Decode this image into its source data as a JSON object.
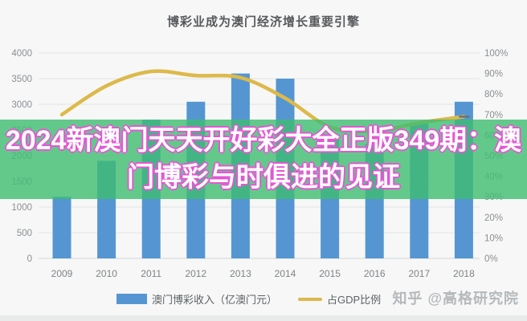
{
  "title": "博彩业成为澳门经济增长重要引擎",
  "overlay": {
    "headline": "2024新澳门天天开好彩大全正版349期：澳门博彩与时俱进的见证",
    "lines": [
      "2024新澳门天天开好彩大全正版349期：澳",
      "门博彩与时俱进的见证"
    ],
    "band_color": "#3ebd70",
    "band_opacity": "0.80",
    "text_color": "#ffffff",
    "outline_color": "#e655d6"
  },
  "watermark": "知乎 @高格研究院",
  "colors": {
    "background": "#f6f7f6",
    "bar": "#5596d2",
    "line": "#ddb94b",
    "grid": "#e3e4e6",
    "axis_line": "#d4d6d8",
    "axis_text": "#8b8f94",
    "x_text": "#7f8488",
    "end_marker": "#6b6f73"
  },
  "chart_data": {
    "type": "bar",
    "subtype": "combo-bar-line-dual-axis",
    "title": "博彩业成为澳门经济增长重要引擎",
    "categories": [
      "2009",
      "2010",
      "2011",
      "2012",
      "2013",
      "2014",
      "2015",
      "2016",
      "2017",
      "2018"
    ],
    "series": [
      {
        "name": "澳门博彩收入（亿澳门元）",
        "type": "bar",
        "axis": "left",
        "color": "#5596d2",
        "values": [
          1200,
          1900,
          2700,
          3050,
          3600,
          3500,
          2310,
          2230,
          2650,
          3050
        ]
      },
      {
        "name": "占GDP比例",
        "type": "line",
        "axis": "right",
        "color": "#ddb94b",
        "values": [
          70,
          84,
          91,
          89,
          88,
          78,
          64,
          62,
          66,
          69
        ]
      }
    ],
    "left_axis": {
      "min": 0,
      "max": 4000,
      "step": 500,
      "ticks": [
        "4000",
        "3500",
        "3000",
        "2500",
        "2000",
        "1500",
        "1000",
        "500",
        "0"
      ]
    },
    "right_axis": {
      "min": 0,
      "max": 100,
      "step": 10,
      "ticks": [
        "100%",
        "90%",
        "80%",
        "70%",
        "60%",
        "50%",
        "40%",
        "30%",
        "20%",
        "10%",
        "0%"
      ]
    },
    "grid": true,
    "legend_position": "bottom",
    "xlabel": "",
    "ylabel": ""
  }
}
